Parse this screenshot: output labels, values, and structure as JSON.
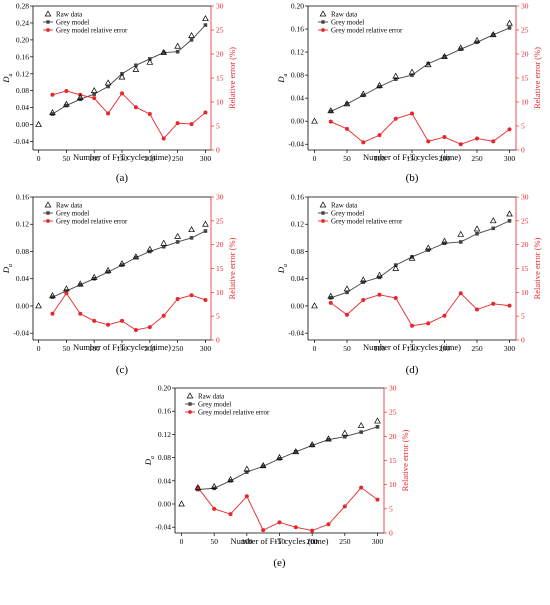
{
  "figure": {
    "background": "#ffffff"
  },
  "colors": {
    "axis": "#000000",
    "model": "#444444",
    "error": "#e8262b",
    "raw": "#000000"
  },
  "chart_data": [
    {
      "id": "a",
      "panel_label": "(a)",
      "type": "line",
      "x": [
        0,
        25,
        50,
        75,
        100,
        125,
        150,
        175,
        200,
        225,
        250,
        275,
        300
      ],
      "series": [
        {
          "name": "Raw data",
          "marker": "open-triangle",
          "axis": "left",
          "values": [
            0.0,
            0.028,
            0.048,
            0.064,
            0.08,
            0.098,
            0.112,
            0.13,
            0.147,
            0.17,
            0.185,
            0.21,
            0.25
          ]
        },
        {
          "name": "Grey model",
          "marker": "filled-square",
          "axis": "left",
          "x": [
            25,
            50,
            75,
            100,
            125,
            150,
            175,
            200,
            225,
            250,
            275,
            300
          ],
          "values": [
            0.025,
            0.045,
            0.06,
            0.072,
            0.09,
            0.12,
            0.14,
            0.155,
            0.17,
            0.172,
            0.2,
            0.235
          ]
        },
        {
          "name": "Grey model relative error",
          "marker": "filled-circle",
          "axis": "right",
          "x": [
            25,
            50,
            75,
            100,
            125,
            150,
            175,
            200,
            225,
            250,
            275,
            300
          ],
          "values": [
            11.5,
            12.3,
            11.5,
            10.8,
            7.6,
            11.8,
            8.9,
            7.5,
            2.4,
            5.6,
            5.4,
            7.8
          ]
        }
      ],
      "xlabel": "Number of F-T cycles (time)",
      "ylabel": "D_a",
      "ylabel_base": "D",
      "ylabel_sub": "a",
      "y2label": "Relative error (%)",
      "xticks": [
        0,
        50,
        100,
        150,
        200,
        250,
        300
      ],
      "xlim": [
        -10,
        310
      ],
      "yticks": [
        -0.04,
        0.0,
        0.04,
        0.08,
        0.12,
        0.16,
        0.2,
        0.24,
        0.28
      ],
      "ytick_labels": [
        "-0.04",
        "0.00",
        "0.04",
        "0.08",
        "0.12",
        "0.16",
        "0.20",
        "0.24",
        "0.28"
      ],
      "ylim": [
        -0.06,
        0.28
      ],
      "y2ticks": [
        0,
        5,
        10,
        15,
        20,
        25,
        30
      ],
      "y2_tick_labels": [
        "0",
        "5",
        "10",
        "15",
        "20",
        "25",
        "30"
      ],
      "y2lim": [
        0,
        30
      ],
      "legend_position": "top-left",
      "legend_labels": [
        "Raw data",
        "Grey model",
        "Grey model relative error"
      ]
    },
    {
      "id": "b",
      "panel_label": "(b)",
      "type": "line",
      "x": [
        0,
        25,
        50,
        75,
        100,
        125,
        150,
        175,
        200,
        225,
        250,
        275,
        300
      ],
      "series": [
        {
          "name": "Raw data",
          "marker": "open-triangle",
          "axis": "left",
          "values": [
            0.0,
            0.018,
            0.03,
            0.047,
            0.062,
            0.078,
            0.085,
            0.098,
            0.112,
            0.127,
            0.14,
            0.15,
            0.17
          ]
        },
        {
          "name": "Grey model",
          "marker": "filled-square",
          "axis": "left",
          "x": [
            25,
            50,
            75,
            100,
            125,
            150,
            175,
            200,
            225,
            250,
            275,
            300
          ],
          "values": [
            0.017,
            0.03,
            0.045,
            0.06,
            0.073,
            0.08,
            0.1,
            0.112,
            0.125,
            0.137,
            0.15,
            0.162
          ]
        },
        {
          "name": "Grey model relative error",
          "marker": "filled-circle",
          "axis": "right",
          "x": [
            25,
            50,
            75,
            100,
            125,
            150,
            175,
            200,
            225,
            250,
            275,
            300
          ],
          "values": [
            5.9,
            4.4,
            1.6,
            3.1,
            6.5,
            7.6,
            1.8,
            2.7,
            1.2,
            2.4,
            1.8,
            4.3
          ]
        }
      ],
      "xlabel": "Number of F-T cycles (time)",
      "ylabel": "D_a",
      "ylabel_base": "D",
      "ylabel_sub": "a",
      "y2label": "Relative error (%)",
      "xticks": [
        0,
        50,
        100,
        150,
        200,
        250,
        300
      ],
      "xlim": [
        -10,
        310
      ],
      "yticks": [
        -0.04,
        0.0,
        0.04,
        0.08,
        0.12,
        0.16,
        0.2
      ],
      "ytick_labels": [
        "-0.04",
        "0.00",
        "0.04",
        "0.08",
        "0.12",
        "0.16",
        "0.20"
      ],
      "ylim": [
        -0.05,
        0.2
      ],
      "y2ticks": [
        0,
        5,
        10,
        15,
        20,
        25,
        30
      ],
      "y2_tick_labels": [
        "0",
        "5",
        "10",
        "15",
        "20",
        "25",
        "30"
      ],
      "y2lim": [
        0,
        30
      ],
      "legend_position": "top-left",
      "legend_labels": [
        "Raw data",
        "Grey model",
        "Grey model relative error"
      ]
    },
    {
      "id": "c",
      "panel_label": "(c)",
      "type": "line",
      "x": [
        0,
        25,
        50,
        75,
        100,
        125,
        150,
        175,
        200,
        225,
        250,
        275,
        300
      ],
      "series": [
        {
          "name": "Raw data",
          "marker": "open-triangle",
          "axis": "left",
          "values": [
            0.0,
            0.015,
            0.025,
            0.032,
            0.042,
            0.052,
            0.062,
            0.072,
            0.083,
            0.092,
            0.102,
            0.112,
            0.12
          ]
        },
        {
          "name": "Grey model",
          "marker": "filled-square",
          "axis": "left",
          "x": [
            25,
            50,
            75,
            100,
            125,
            150,
            175,
            200,
            225,
            250,
            275,
            300
          ],
          "values": [
            0.013,
            0.022,
            0.031,
            0.04,
            0.05,
            0.06,
            0.071,
            0.08,
            0.087,
            0.094,
            0.1,
            0.11
          ]
        },
        {
          "name": "Grey model relative error",
          "marker": "filled-circle",
          "axis": "right",
          "x": [
            25,
            50,
            75,
            100,
            125,
            150,
            175,
            200,
            225,
            250,
            275,
            300
          ],
          "values": [
            5.5,
            9.8,
            5.5,
            4.0,
            3.2,
            4.0,
            2.1,
            2.7,
            5.1,
            8.6,
            9.4,
            8.4
          ]
        }
      ],
      "xlabel": "Number of F-T cycles (time)",
      "ylabel": "D_a",
      "ylabel_base": "D",
      "ylabel_sub": "a",
      "y2label": "Relative error (%)",
      "xticks": [
        0,
        50,
        100,
        150,
        200,
        250,
        300
      ],
      "xlim": [
        -10,
        310
      ],
      "yticks": [
        -0.04,
        0.0,
        0.04,
        0.08,
        0.12,
        0.16
      ],
      "ytick_labels": [
        "-0.04",
        "0.00",
        "0.04",
        "0.08",
        "0.12",
        "0.16"
      ],
      "ylim": [
        -0.05,
        0.16
      ],
      "y2ticks": [
        0,
        5,
        10,
        15,
        20,
        25,
        30
      ],
      "y2_tick_labels": [
        "0",
        "5",
        "10",
        "15",
        "20",
        "25",
        "30"
      ],
      "y2lim": [
        0,
        30
      ],
      "legend_position": "top-left",
      "legend_labels": [
        "Raw data",
        "Grey model",
        "Grey model relative error"
      ]
    },
    {
      "id": "d",
      "panel_label": "(d)",
      "type": "line",
      "x": [
        0,
        25,
        50,
        75,
        100,
        125,
        150,
        175,
        200,
        225,
        250,
        275,
        300
      ],
      "series": [
        {
          "name": "Raw data",
          "marker": "open-triangle",
          "axis": "left",
          "values": [
            0.0,
            0.014,
            0.025,
            0.038,
            0.045,
            0.055,
            0.07,
            0.085,
            0.095,
            0.105,
            0.113,
            0.125,
            0.135
          ]
        },
        {
          "name": "Grey model",
          "marker": "filled-square",
          "axis": "left",
          "x": [
            25,
            50,
            75,
            100,
            125,
            150,
            175,
            200,
            225,
            250,
            275,
            300
          ],
          "values": [
            0.012,
            0.02,
            0.035,
            0.042,
            0.06,
            0.072,
            0.082,
            0.092,
            0.094,
            0.106,
            0.114,
            0.125
          ]
        },
        {
          "name": "Grey model relative error",
          "marker": "filled-circle",
          "axis": "right",
          "x": [
            25,
            50,
            75,
            100,
            125,
            150,
            175,
            200,
            225,
            250,
            275,
            300
          ],
          "values": [
            7.8,
            5.3,
            8.4,
            9.5,
            8.8,
            3.0,
            3.5,
            5.1,
            9.8,
            6.4,
            7.6,
            7.2
          ]
        }
      ],
      "xlabel": "Number of F-T cycles (time)",
      "ylabel": "D_a",
      "ylabel_base": "D",
      "ylabel_sub": "a",
      "y2label": "Relative error (%)",
      "xticks": [
        0,
        50,
        100,
        150,
        200,
        250,
        300
      ],
      "xlim": [
        -10,
        310
      ],
      "yticks": [
        -0.04,
        0.0,
        0.04,
        0.08,
        0.12,
        0.16
      ],
      "ytick_labels": [
        "-0.04",
        "0.00",
        "0.04",
        "0.08",
        "0.12",
        "0.16"
      ],
      "ylim": [
        -0.05,
        0.16
      ],
      "y2ticks": [
        0,
        5,
        10,
        15,
        20,
        25,
        30
      ],
      "y2_tick_labels": [
        "0",
        "5",
        "10",
        "15",
        "20",
        "25",
        "30"
      ],
      "y2lim": [
        0,
        30
      ],
      "legend_position": "top-left",
      "legend_labels": [
        "Raw data",
        "Grey model",
        "Grey model relative error"
      ]
    },
    {
      "id": "e",
      "panel_label": "(e)",
      "type": "line",
      "x": [
        0,
        25,
        50,
        75,
        100,
        125,
        150,
        175,
        200,
        225,
        250,
        275,
        300
      ],
      "series": [
        {
          "name": "Raw data",
          "marker": "open-triangle",
          "axis": "left",
          "values": [
            0.0,
            0.028,
            0.03,
            0.042,
            0.06,
            0.066,
            0.08,
            0.09,
            0.102,
            0.112,
            0.122,
            0.135,
            0.143
          ]
        },
        {
          "name": "Grey model",
          "marker": "filled-square",
          "axis": "left",
          "x": [
            25,
            50,
            75,
            100,
            125,
            150,
            175,
            200,
            225,
            250,
            275,
            300
          ],
          "values": [
            0.025,
            0.027,
            0.04,
            0.055,
            0.065,
            0.078,
            0.09,
            0.101,
            0.111,
            0.116,
            0.124,
            0.133
          ]
        },
        {
          "name": "Grey model relative error",
          "marker": "filled-circle",
          "axis": "right",
          "x": [
            25,
            50,
            75,
            100,
            125,
            150,
            175,
            200,
            225,
            250,
            275,
            300
          ],
          "values": [
            9.4,
            5.0,
            3.9,
            7.6,
            0.6,
            2.2,
            1.2,
            0.5,
            1.8,
            5.5,
            9.4,
            6.9
          ]
        }
      ],
      "xlabel": "Number of F-T cycles (time)",
      "ylabel": "D_a",
      "ylabel_base": "D",
      "ylabel_sub": "a",
      "y2label": "Relative error (%)",
      "xticks": [
        0,
        50,
        100,
        150,
        200,
        250,
        300
      ],
      "xlim": [
        -10,
        310
      ],
      "yticks": [
        -0.04,
        0.0,
        0.04,
        0.08,
        0.12,
        0.16,
        0.2
      ],
      "ytick_labels": [
        "-0.04",
        "0.00",
        "0.04",
        "0.08",
        "0.12",
        "0.16",
        "0.20"
      ],
      "ylim": [
        -0.05,
        0.2
      ],
      "y2ticks": [
        0,
        5,
        10,
        15,
        20,
        25,
        30
      ],
      "y2_tick_labels": [
        "0",
        "5",
        "10",
        "15",
        "20",
        "25",
        "30"
      ],
      "y2lim": [
        0,
        30
      ],
      "legend_position": "top-left",
      "legend_labels": [
        "Raw data",
        "Grey model",
        "Grey model relative error"
      ]
    }
  ]
}
